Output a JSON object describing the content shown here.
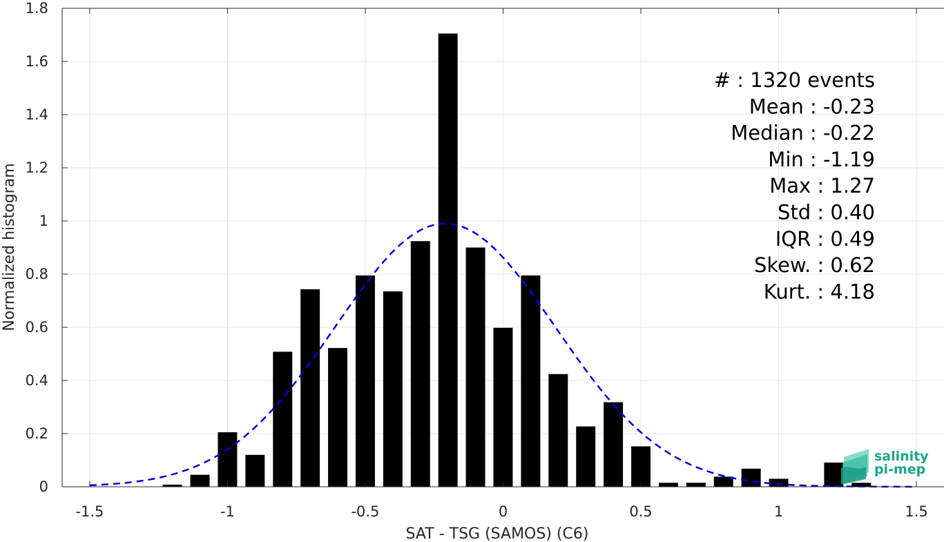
{
  "chart_data": {
    "type": "bar",
    "xlabel": "SAT - TSG (SAMOS) (C6)",
    "ylabel": "Normalized histogram",
    "xlim": [
      -1.6,
      1.6
    ],
    "ylim": [
      0,
      1.8
    ],
    "grid": true,
    "xticks": [
      -1.5,
      -1,
      -0.5,
      0,
      0.5,
      1,
      1.5
    ],
    "xtick_labels": [
      "-1.5",
      "-1",
      "-0.5",
      "0",
      "0.5",
      "1",
      "1.5"
    ],
    "yticks": [
      0,
      0.2,
      0.4,
      0.6,
      0.8,
      1,
      1.2,
      1.4,
      1.6,
      1.8
    ],
    "ytick_labels": [
      "0",
      "0.2",
      "0.4",
      "0.6",
      "0.8",
      "1",
      "1.2",
      "1.4",
      "1.6",
      "1.8"
    ],
    "bin_width": 0.1,
    "bar_width_fraction": 0.7,
    "bar_color": "#000000",
    "bins": [
      {
        "center": -1.2,
        "value": 0.008
      },
      {
        "center": -1.1,
        "value": 0.045
      },
      {
        "center": -1.0,
        "value": 0.205
      },
      {
        "center": -0.9,
        "value": 0.12
      },
      {
        "center": -0.8,
        "value": 0.508
      },
      {
        "center": -0.7,
        "value": 0.743
      },
      {
        "center": -0.6,
        "value": 0.522
      },
      {
        "center": -0.5,
        "value": 0.795
      },
      {
        "center": -0.4,
        "value": 0.735
      },
      {
        "center": -0.3,
        "value": 0.924
      },
      {
        "center": -0.2,
        "value": 1.705
      },
      {
        "center": -0.1,
        "value": 0.9
      },
      {
        "center": 0.0,
        "value": 0.598
      },
      {
        "center": 0.1,
        "value": 0.795
      },
      {
        "center": 0.2,
        "value": 0.424
      },
      {
        "center": 0.3,
        "value": 0.227
      },
      {
        "center": 0.4,
        "value": 0.318
      },
      {
        "center": 0.5,
        "value": 0.152
      },
      {
        "center": 0.6,
        "value": 0.015
      },
      {
        "center": 0.7,
        "value": 0.015
      },
      {
        "center": 0.8,
        "value": 0.038
      },
      {
        "center": 0.9,
        "value": 0.068
      },
      {
        "center": 1.0,
        "value": 0.03
      },
      {
        "center": 1.2,
        "value": 0.091
      },
      {
        "center": 1.3,
        "value": 0.015
      }
    ],
    "fit_curve": {
      "type": "normal",
      "mean": -0.21,
      "std": 0.4,
      "peak": 0.99,
      "x_range": [
        -1.5,
        1.5
      ],
      "color": "#0000dd",
      "style": "dashed"
    },
    "stats": [
      "#  : 1320 events",
      "Mean : -0.23",
      "Median : -0.22",
      "Min : -1.19",
      "Max : 1.27",
      "Std : 0.40",
      "IQR : 0.49",
      "Skew. : 0.62",
      "Kurt. : 4.18"
    ]
  },
  "logo": {
    "line1": "salinity",
    "line2": "pi-mep",
    "color": "#1aa58c"
  }
}
